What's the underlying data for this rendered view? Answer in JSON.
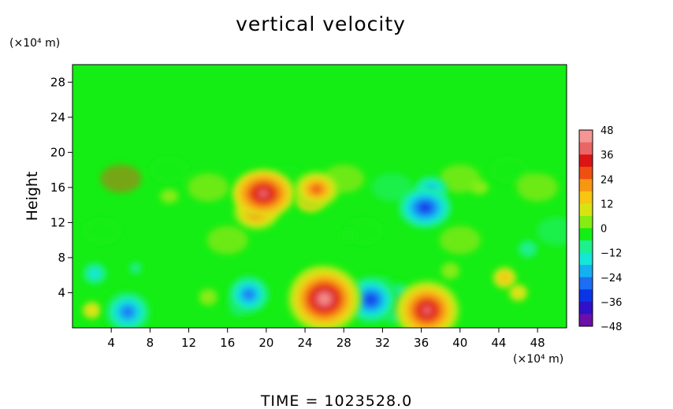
{
  "chart_data": {
    "type": "heatmap",
    "title": "vertical velocity",
    "ylabel": "Height",
    "y_units": "(×10⁴ m)",
    "x_units": "(×10⁴ m)",
    "footer": "TIME  =  1023528.0",
    "xlim": [
      0,
      51
    ],
    "ylim": [
      0,
      30
    ],
    "x_ticks": [
      4,
      8,
      12,
      16,
      20,
      24,
      28,
      32,
      36,
      40,
      44,
      48
    ],
    "x_tick_labels": [
      "4",
      "8",
      "12",
      "16",
      "20",
      "24",
      "28",
      "32",
      "36",
      "40",
      "44",
      "48"
    ],
    "y_ticks": [
      4,
      8,
      12,
      16,
      20,
      24,
      28
    ],
    "y_tick_labels": [
      "4",
      "8",
      "12",
      "16",
      "20",
      "24",
      "28"
    ],
    "colorbar": {
      "min": -48,
      "max": 48,
      "ticks": [
        48,
        36,
        24,
        12,
        0,
        -12,
        -24,
        -36,
        -48
      ],
      "tick_labels": [
        "48",
        "36",
        "24",
        "12",
        "0",
        "−12",
        "−24",
        "−36",
        "−48"
      ],
      "colors": [
        "#6a0fa8",
        "#3010c8",
        "#0a35e6",
        "#1d6ef2",
        "#15b0f0",
        "#16e6d8",
        "#1ef08c",
        "#14ee14",
        "#86ec12",
        "#d8e412",
        "#f6c612",
        "#f69612",
        "#ee5012",
        "#dc1414",
        "#ea6666",
        "#f49696"
      ]
    },
    "features": [
      {
        "x": 26,
        "y": 3.3,
        "value": 45
      },
      {
        "x": 25.5,
        "y": 4.2,
        "value": 30
      },
      {
        "x": 36.6,
        "y": 2.0,
        "value": 40
      },
      {
        "x": 19.7,
        "y": 15.3,
        "value": 38
      },
      {
        "x": 19.0,
        "y": 13.2,
        "value": 28
      },
      {
        "x": 25.2,
        "y": 15.8,
        "value": 28
      },
      {
        "x": 24.6,
        "y": 14.5,
        "value": 18
      },
      {
        "x": 44.6,
        "y": 5.7,
        "value": 14
      },
      {
        "x": 46.0,
        "y": 4.0,
        "value": 6
      },
      {
        "x": 2.0,
        "y": 2.0,
        "value": 8
      },
      {
        "x": 14.0,
        "y": 3.5,
        "value": 5
      },
      {
        "x": 39.0,
        "y": 6.5,
        "value": 5
      },
      {
        "x": 18.2,
        "y": 3.8,
        "value": -28
      },
      {
        "x": 17.3,
        "y": 2.6,
        "value": -18
      },
      {
        "x": 30.8,
        "y": 3.2,
        "value": -34
      },
      {
        "x": 33.4,
        "y": 2.8,
        "value": -30
      },
      {
        "x": 32.0,
        "y": 4.5,
        "value": -18
      },
      {
        "x": 5.7,
        "y": 1.8,
        "value": -30
      },
      {
        "x": 36.4,
        "y": 13.7,
        "value": -32
      },
      {
        "x": 37.0,
        "y": 15.8,
        "value": -20
      },
      {
        "x": 6.5,
        "y": 6.8,
        "value": -10
      },
      {
        "x": 2.3,
        "y": 6.2,
        "value": -14
      },
      {
        "x": 28.5,
        "y": 10.5,
        "value": -6
      },
      {
        "x": 47.0,
        "y": 9.0,
        "value": -7
      },
      {
        "x": 10.0,
        "y": 15.0,
        "value": 5
      },
      {
        "x": 42.0,
        "y": 16.0,
        "value": 5
      }
    ]
  }
}
